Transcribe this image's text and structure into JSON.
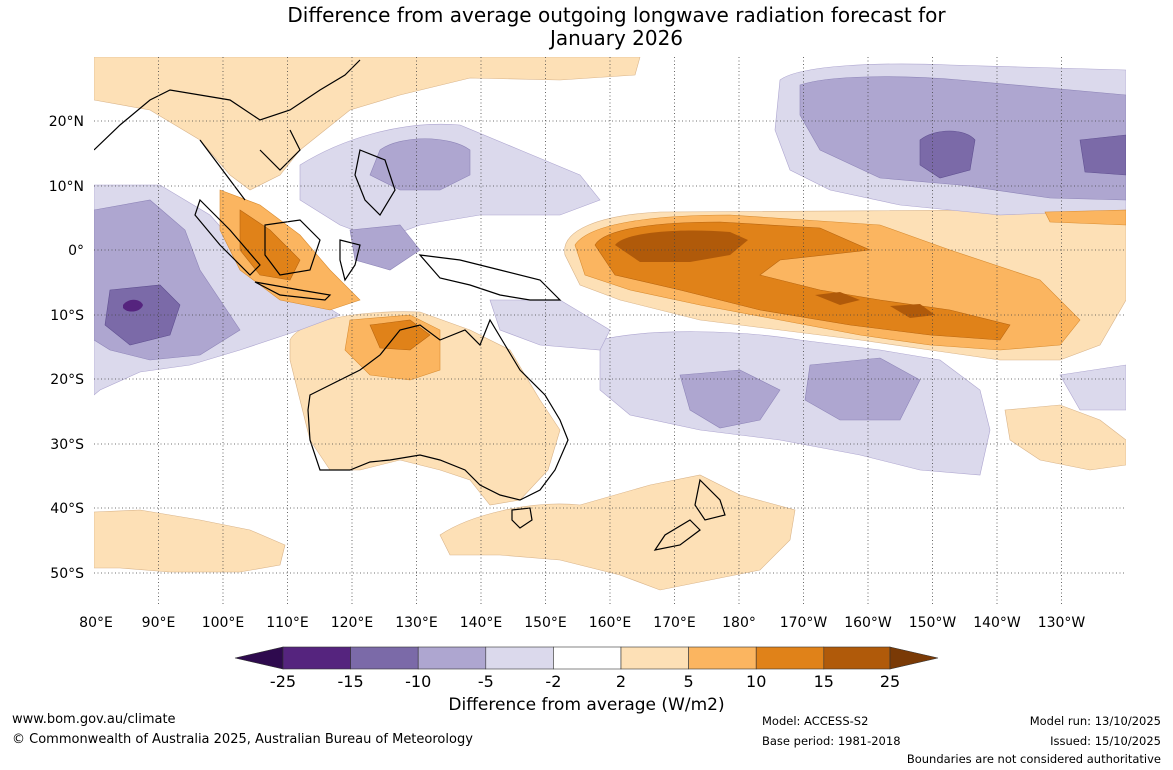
{
  "title": {
    "line1": "Difference from average outgoing longwave radiation forecast for",
    "line2": "January 2026"
  },
  "map": {
    "lat_ticks": [
      "20°N",
      "10°N",
      "0°",
      "10°S",
      "20°S",
      "30°S",
      "40°S",
      "50°S"
    ],
    "lon_ticks": [
      "80°E",
      "90°E",
      "100°E",
      "110°E",
      "120°E",
      "130°E",
      "140°E",
      "150°E",
      "160°E",
      "170°E",
      "180°",
      "170°W",
      "160°W",
      "150°W",
      "140°W",
      "130°W"
    ],
    "extent": {
      "lon_min": 80,
      "lon_max": 240,
      "lat_min": -55,
      "lat_max": 30
    }
  },
  "colorbar": {
    "ticks": [
      "-25",
      "-15",
      "-10",
      "-5",
      "-2",
      "2",
      "5",
      "10",
      "15",
      "25"
    ],
    "colors": [
      "#2e0a4e",
      "#55247e",
      "#7b6aa8",
      "#aea6d0",
      "#dbd9ec",
      "#ffffff",
      "#fde0b6",
      "#fbb560",
      "#e08219",
      "#b05a0a",
      "#7a3a06"
    ],
    "label": "Difference from average (W/m2)"
  },
  "footer": {
    "website": "www.bom.gov.au/climate",
    "copyright": "© Commonwealth of Australia 2025, Australian Bureau of Meteorology",
    "model": "Model: ACCESS-S2",
    "base_period": "Base period: 1981-2018",
    "model_run": "Model run: 13/10/2025",
    "issued": "Issued: 15/10/2025",
    "disclaimer": "Boundaries are not considered authoritative"
  },
  "colors": {
    "ocean": "#ffffff",
    "land_outline": "#000000",
    "grid": "#444444"
  }
}
